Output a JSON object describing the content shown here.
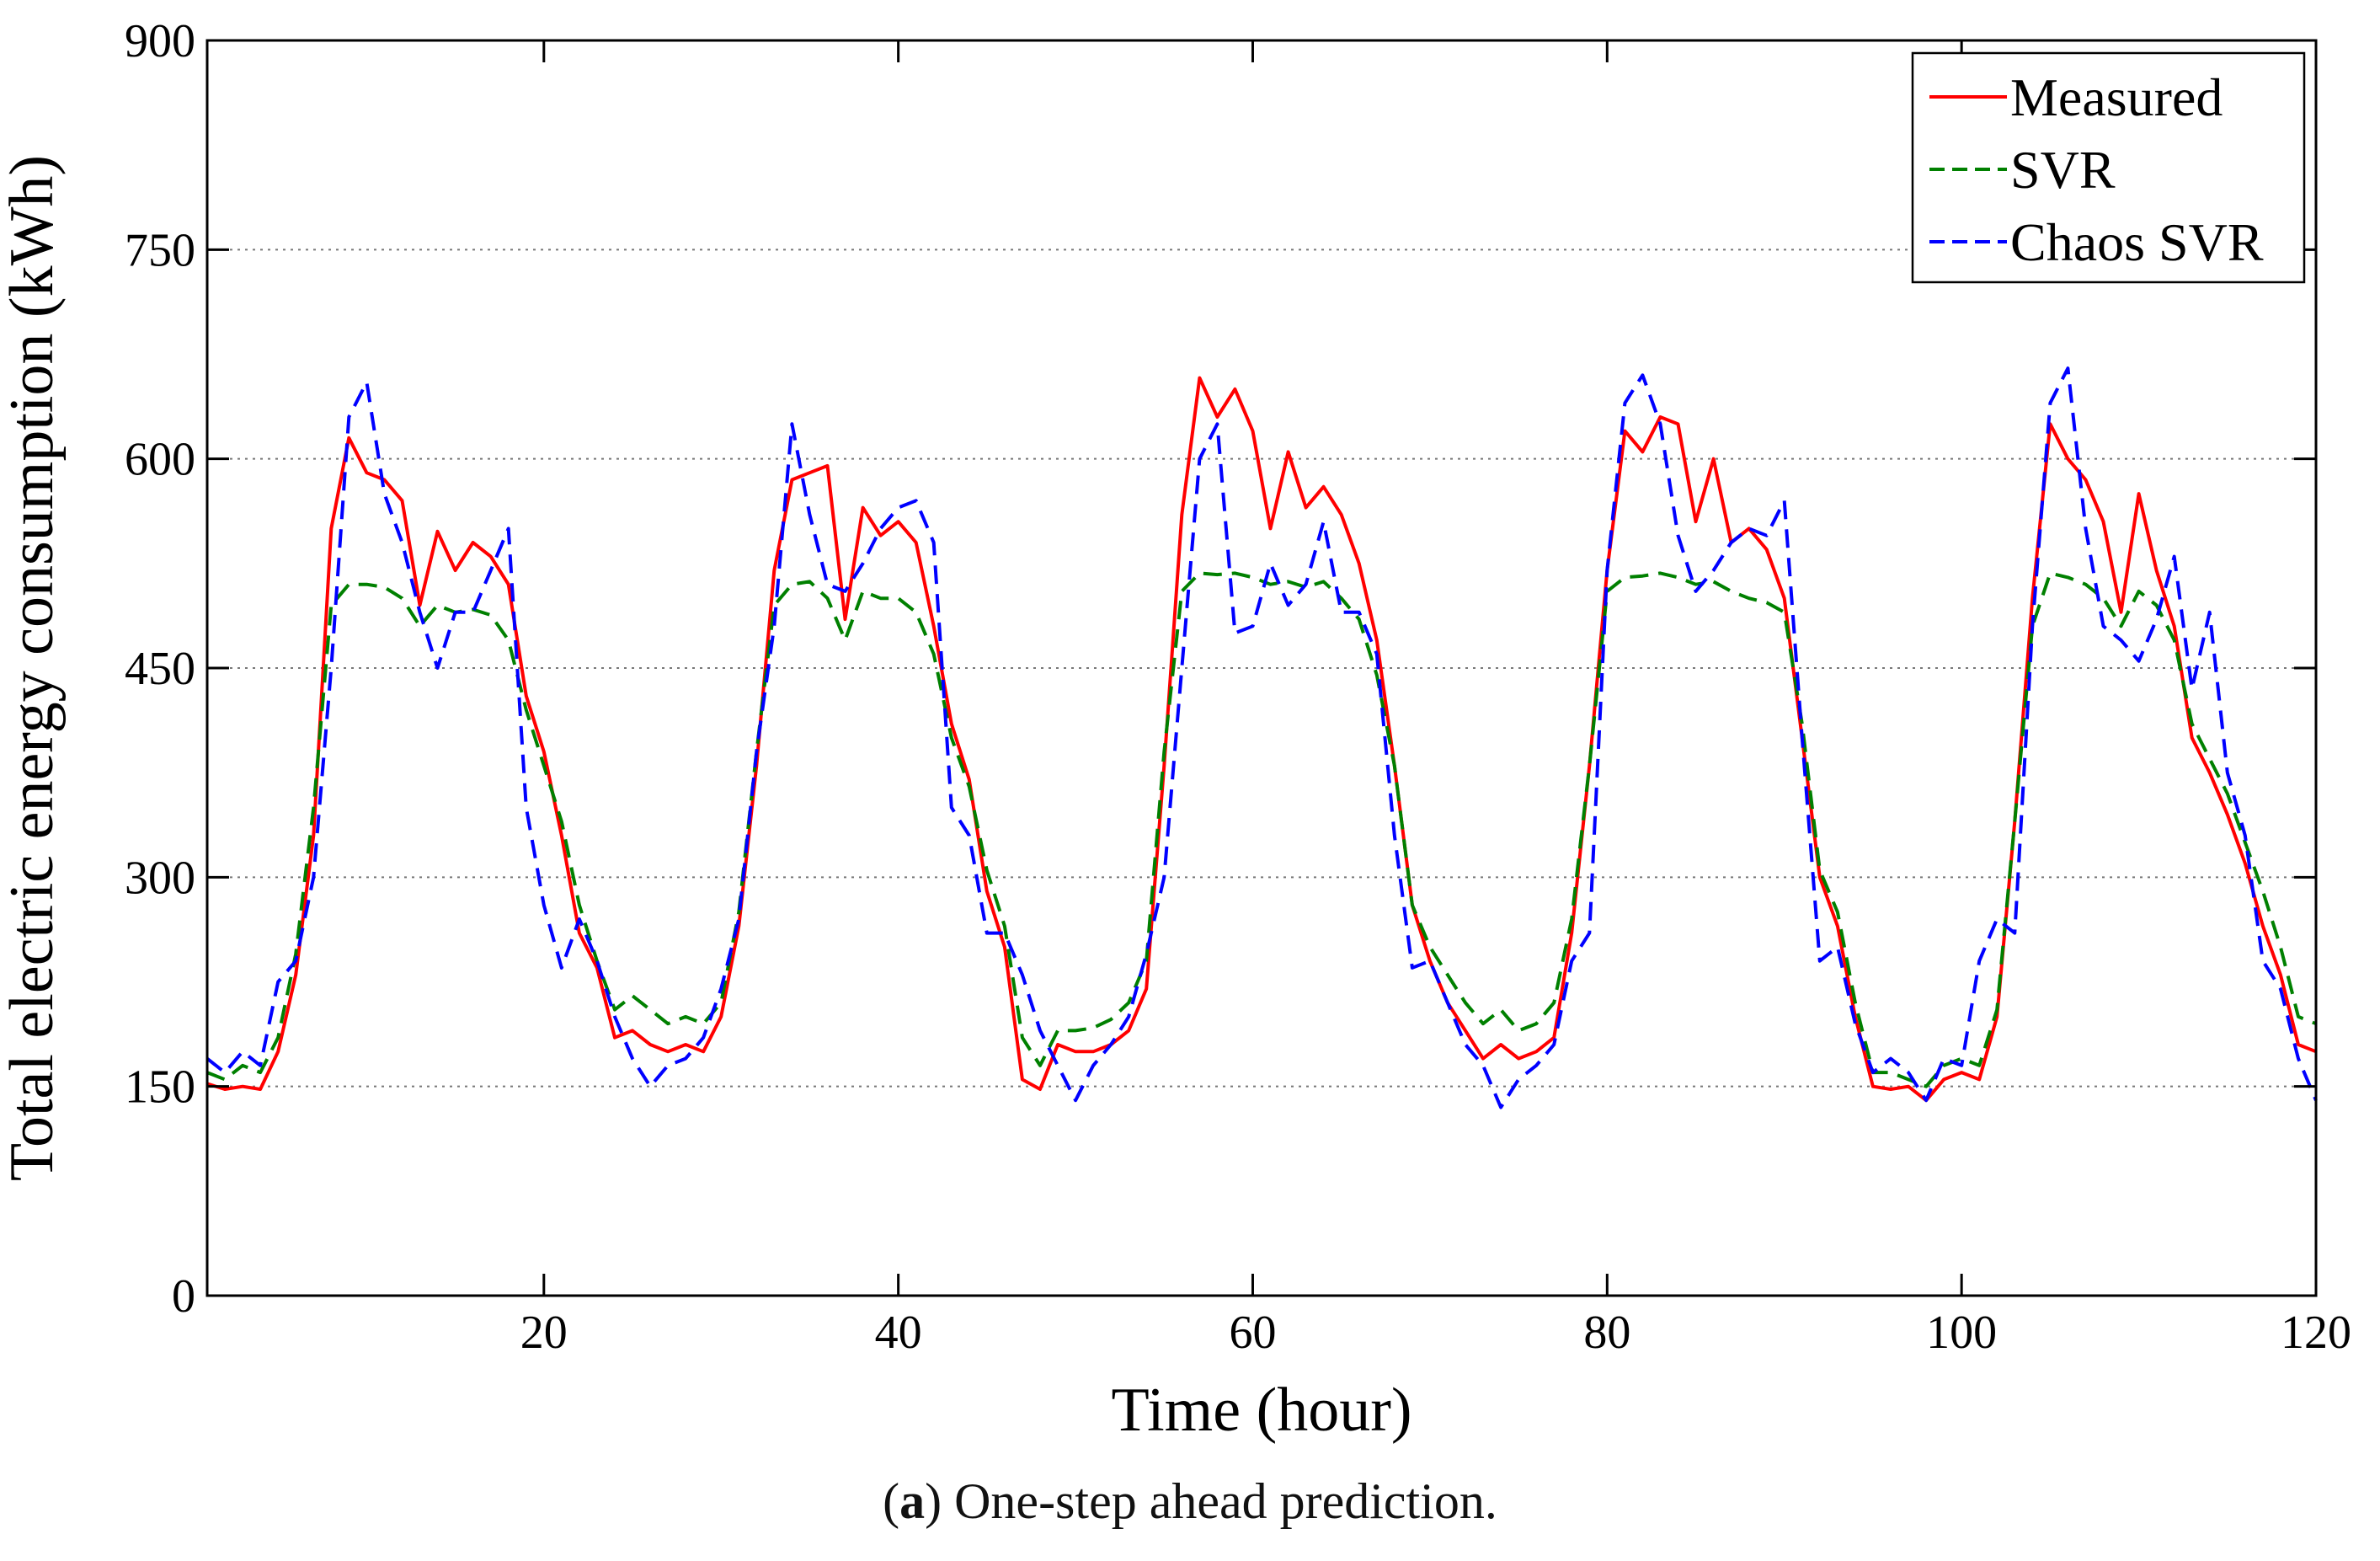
{
  "chart_data": {
    "type": "line",
    "xlabel": "Time (hour)",
    "ylabel": "Total electric energy consumption (kWh)",
    "xlim": [
      1,
      120
    ],
    "ylim": [
      0,
      900
    ],
    "xticks": [
      20,
      40,
      60,
      80,
      100,
      120
    ],
    "xtick_labels": [
      "20",
      "40",
      "60",
      "80",
      "100",
      "120"
    ],
    "yticks": [
      0,
      150,
      300,
      450,
      600,
      750,
      900
    ],
    "ytick_labels": [
      "0",
      "150",
      "300",
      "450",
      "600",
      "750",
      "900"
    ],
    "grid": "horizontal dotted",
    "legend_position": "top-right",
    "series": [
      {
        "name": "Measured",
        "color": "#ff0000",
        "dash": "solid",
        "x": [
          1,
          2,
          3,
          4,
          5,
          6,
          7,
          8,
          9,
          10,
          11,
          12,
          13,
          14,
          15,
          16,
          17,
          18,
          19,
          20,
          21,
          22,
          23,
          24,
          25,
          26,
          27,
          28,
          29,
          30,
          31,
          32,
          33,
          34,
          35,
          36,
          37,
          38,
          39,
          40,
          41,
          42,
          43,
          44,
          45,
          46,
          47,
          48,
          49,
          50,
          51,
          52,
          53,
          54,
          55,
          56,
          57,
          58,
          59,
          60,
          61,
          62,
          63,
          64,
          65,
          66,
          67,
          68,
          69,
          70,
          71,
          72,
          73,
          74,
          75,
          76,
          77,
          78,
          79,
          80,
          81,
          82,
          83,
          84,
          85,
          86,
          87,
          88,
          89,
          90,
          91,
          92,
          93,
          94,
          95,
          96,
          97,
          98,
          99,
          100,
          101,
          102,
          103,
          104,
          105,
          106,
          107,
          108,
          109,
          110,
          111,
          112,
          113,
          114,
          115,
          116,
          117,
          118,
          119,
          120
        ],
        "values": [
          152,
          148,
          150,
          148,
          175,
          230,
          330,
          550,
          615,
          590,
          585,
          570,
          495,
          548,
          520,
          540,
          530,
          510,
          430,
          390,
          330,
          260,
          235,
          185,
          190,
          180,
          175,
          180,
          175,
          200,
          265,
          380,
          520,
          585,
          590,
          595,
          485,
          565,
          545,
          555,
          540,
          480,
          410,
          370,
          290,
          250,
          155,
          148,
          180,
          175,
          175,
          180,
          190,
          220,
          380,
          560,
          658,
          630,
          650,
          620,
          550,
          605,
          565,
          580,
          560,
          525,
          470,
          380,
          280,
          240,
          210,
          190,
          170,
          180,
          170,
          175,
          185,
          260,
          380,
          520,
          620,
          605,
          630,
          625,
          555,
          600,
          540,
          550,
          535,
          500,
          400,
          300,
          265,
          200,
          150,
          148,
          150,
          140,
          155,
          160,
          155,
          200,
          340,
          500,
          625,
          600,
          585,
          555,
          490,
          575,
          520,
          480,
          400,
          375,
          345,
          310,
          265,
          230,
          180,
          175
        ]
      },
      {
        "name": "SVR",
        "color": "#008000",
        "dash": "dashed",
        "x": [
          1,
          2,
          3,
          4,
          5,
          6,
          7,
          8,
          9,
          10,
          11,
          12,
          13,
          14,
          15,
          16,
          17,
          18,
          19,
          20,
          21,
          22,
          23,
          24,
          25,
          26,
          27,
          28,
          29,
          30,
          31,
          32,
          33,
          34,
          35,
          36,
          37,
          38,
          39,
          40,
          41,
          42,
          43,
          44,
          45,
          46,
          47,
          48,
          49,
          50,
          51,
          52,
          53,
          54,
          55,
          56,
          57,
          58,
          59,
          60,
          61,
          62,
          63,
          64,
          65,
          66,
          67,
          68,
          69,
          70,
          71,
          72,
          73,
          74,
          75,
          76,
          77,
          78,
          79,
          80,
          81,
          82,
          83,
          84,
          85,
          86,
          87,
          88,
          89,
          90,
          91,
          92,
          93,
          94,
          95,
          96,
          97,
          98,
          99,
          100,
          101,
          102,
          103,
          104,
          105,
          106,
          107,
          108,
          109,
          110,
          111,
          112,
          113,
          114,
          115,
          116,
          117,
          118,
          119,
          120
        ],
        "values": [
          160,
          155,
          165,
          160,
          185,
          245,
          350,
          495,
          510,
          510,
          508,
          500,
          480,
          495,
          490,
          492,
          488,
          470,
          420,
          380,
          340,
          280,
          240,
          205,
          215,
          205,
          195,
          200,
          195,
          210,
          275,
          390,
          495,
          510,
          512,
          500,
          470,
          505,
          500,
          500,
          490,
          460,
          400,
          365,
          305,
          265,
          185,
          165,
          190,
          190,
          192,
          198,
          210,
          240,
          390,
          505,
          518,
          517,
          518,
          515,
          510,
          512,
          508,
          512,
          500,
          485,
          445,
          380,
          280,
          250,
          230,
          210,
          195,
          205,
          190,
          195,
          210,
          270,
          380,
          505,
          515,
          516,
          518,
          515,
          510,
          512,
          505,
          500,
          497,
          490,
          410,
          305,
          275,
          210,
          160,
          160,
          155,
          150,
          165,
          170,
          165,
          205,
          340,
          480,
          518,
          515,
          510,
          500,
          480,
          505,
          495,
          470,
          410,
          385,
          360,
          325,
          290,
          250,
          200,
          195
        ]
      },
      {
        "name": "Chaos SVR",
        "color": "#0000ff",
        "dash": "dashed",
        "x": [
          1,
          2,
          3,
          4,
          5,
          6,
          7,
          8,
          9,
          10,
          11,
          12,
          13,
          14,
          15,
          16,
          17,
          18,
          19,
          20,
          21,
          22,
          23,
          24,
          25,
          26,
          27,
          28,
          29,
          30,
          31,
          32,
          33,
          34,
          35,
          36,
          37,
          38,
          39,
          40,
          41,
          42,
          43,
          44,
          45,
          46,
          47,
          48,
          49,
          50,
          51,
          52,
          53,
          54,
          55,
          56,
          57,
          58,
          59,
          60,
          61,
          62,
          63,
          64,
          65,
          66,
          67,
          68,
          69,
          70,
          71,
          72,
          73,
          74,
          75,
          76,
          77,
          78,
          79,
          80,
          81,
          82,
          83,
          84,
          85,
          86,
          87,
          88,
          89,
          90,
          91,
          92,
          93,
          94,
          95,
          96,
          97,
          98,
          99,
          100,
          101,
          102,
          103,
          104,
          105,
          106,
          107,
          108,
          109,
          110,
          111,
          112,
          113,
          114,
          115,
          116,
          117,
          118,
          119,
          120
        ],
        "values": [
          170,
          160,
          175,
          165,
          225,
          240,
          300,
          450,
          630,
          655,
          575,
          540,
          490,
          450,
          490,
          490,
          520,
          550,
          350,
          280,
          235,
          270,
          240,
          200,
          170,
          150,
          165,
          170,
          185,
          220,
          270,
          390,
          480,
          625,
          560,
          510,
          505,
          525,
          550,
          565,
          570,
          540,
          350,
          330,
          260,
          260,
          230,
          190,
          165,
          140,
          165,
          180,
          200,
          245,
          300,
          450,
          600,
          625,
          475,
          480,
          525,
          495,
          510,
          555,
          490,
          490,
          460,
          330,
          235,
          240,
          210,
          180,
          165,
          135,
          155,
          165,
          180,
          240,
          260,
          520,
          640,
          660,
          625,
          545,
          505,
          520,
          540,
          550,
          545,
          570,
          400,
          240,
          250,
          195,
          160,
          170,
          160,
          140,
          170,
          165,
          240,
          270,
          260,
          480,
          640,
          665,
          550,
          480,
          470,
          455,
          485,
          530,
          435,
          490,
          375,
          330,
          240,
          220,
          170,
          140
        ]
      }
    ]
  },
  "caption": {
    "label": "a",
    "text": ") One-step ahead prediction."
  }
}
